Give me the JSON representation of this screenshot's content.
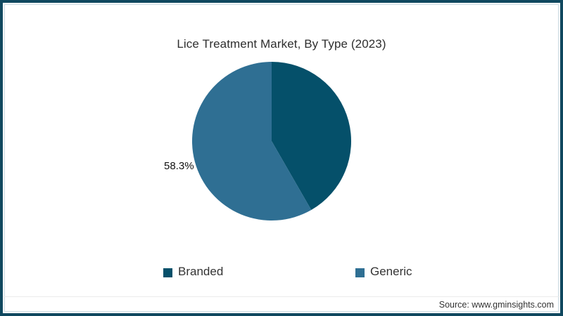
{
  "title": "Lice Treatment Market, By Type (2023)",
  "frame": {
    "border_color": "#10485f",
    "background": "#ffffff"
  },
  "chart_data": {
    "type": "pie",
    "title": "Lice Treatment Market, By Type (2023)",
    "start_angle_deg": 0,
    "direction": "clockwise",
    "slices": [
      {
        "label": "Branded",
        "value": 41.7,
        "color": "#05506a"
      },
      {
        "label": "Generic",
        "value": 58.3,
        "color": "#2f6f93"
      }
    ],
    "shown_label": {
      "text": "58.3%",
      "for_slice": "Generic",
      "position": "outside-left"
    },
    "legend_position": "bottom",
    "legend": [
      "Branded",
      "Generic"
    ]
  },
  "legend": {
    "items": [
      {
        "label": "Branded",
        "color": "#05506a"
      },
      {
        "label": "Generic",
        "color": "#2f6f93"
      }
    ]
  },
  "source": "Source: www.gminsights.com"
}
